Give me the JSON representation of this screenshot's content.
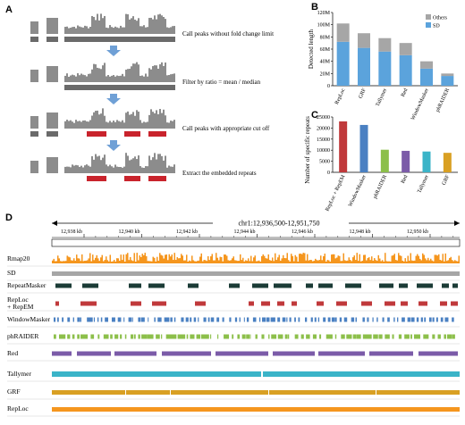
{
  "panel_letters": {
    "a": "A",
    "b": "B",
    "c": "C",
    "d": "D"
  },
  "panel_a": {
    "steps": [
      "Call peaks without fold change limit",
      "Filter by ratio = mean / median",
      "Call peaks with appropriate cut off",
      "Extract the embedded repeats"
    ]
  },
  "chart_data": [
    {
      "type": "bar",
      "panel": "B",
      "stacked": true,
      "categories": [
        "RepLoc",
        "GRF",
        "Tallymer",
        "Red",
        "WindowMasker",
        "phRAIDER"
      ],
      "series": [
        {
          "name": "SD",
          "color": "#5ba3dc",
          "values": [
            72,
            62,
            56,
            50,
            28,
            16
          ]
        },
        {
          "name": "Others",
          "color": "#a6a6a6",
          "values": [
            30,
            24,
            22,
            20,
            12,
            4
          ]
        }
      ],
      "ylabel": "Detected length",
      "yticks": [
        "0",
        "20M",
        "40M",
        "60M",
        "80M",
        "100M",
        "120M"
      ],
      "ylim": [
        0,
        120
      ],
      "legend_position": "top-right"
    },
    {
      "type": "bar",
      "panel": "C",
      "categories": [
        "RepLoc + RepEM",
        "WindowMasker",
        "phRAIDER",
        "Red",
        "Tallymer",
        "GRF"
      ],
      "values": [
        23000,
        21400,
        10200,
        9700,
        9400,
        8800
      ],
      "colors": [
        "#c0393b",
        "#4a80c2",
        "#8cbf4a",
        "#7b5ba8",
        "#3bb4c8",
        "#d9a023"
      ],
      "ylabel": "Number of specific repeats",
      "yticks": [
        "0",
        "5000",
        "10000",
        "15000",
        "20000",
        "25000"
      ],
      "ylim": [
        0,
        25000
      ]
    }
  ],
  "panel_d": {
    "region_label": "chr1:12,936,500-12,951,750",
    "ticks": [
      "12,938 kb",
      "12,940 kb",
      "12,942 kb",
      "12,944 kb",
      "12,946 kb",
      "12,948 kb",
      "12,950 kb"
    ],
    "tracks": [
      {
        "label": "Rmap20",
        "color": "#f5961e",
        "kind": "signal"
      },
      {
        "label": "SD",
        "color": "#a6a6a6",
        "kind": "solid"
      },
      {
        "label": "RepeatMasker",
        "color": "#1b3b36",
        "kind": "blocks"
      },
      {
        "label": "RepLoc\n+ RepEM",
        "color": "#c0393b",
        "kind": "blocks"
      },
      {
        "label": "WindowMasker",
        "color": "#4a80c2",
        "kind": "dense"
      },
      {
        "label": "phRAIDER",
        "color": "#8cbf4a",
        "kind": "dense"
      },
      {
        "label": "Red",
        "color": "#7b5ba8",
        "kind": "long"
      },
      {
        "label": "Tallymer",
        "color": "#3bb4c8",
        "kind": "solid2"
      },
      {
        "label": "GRF",
        "color": "#d9a023",
        "kind": "solid3"
      },
      {
        "label": "RepLoc",
        "color": "#f5961e",
        "kind": "solid"
      }
    ]
  }
}
